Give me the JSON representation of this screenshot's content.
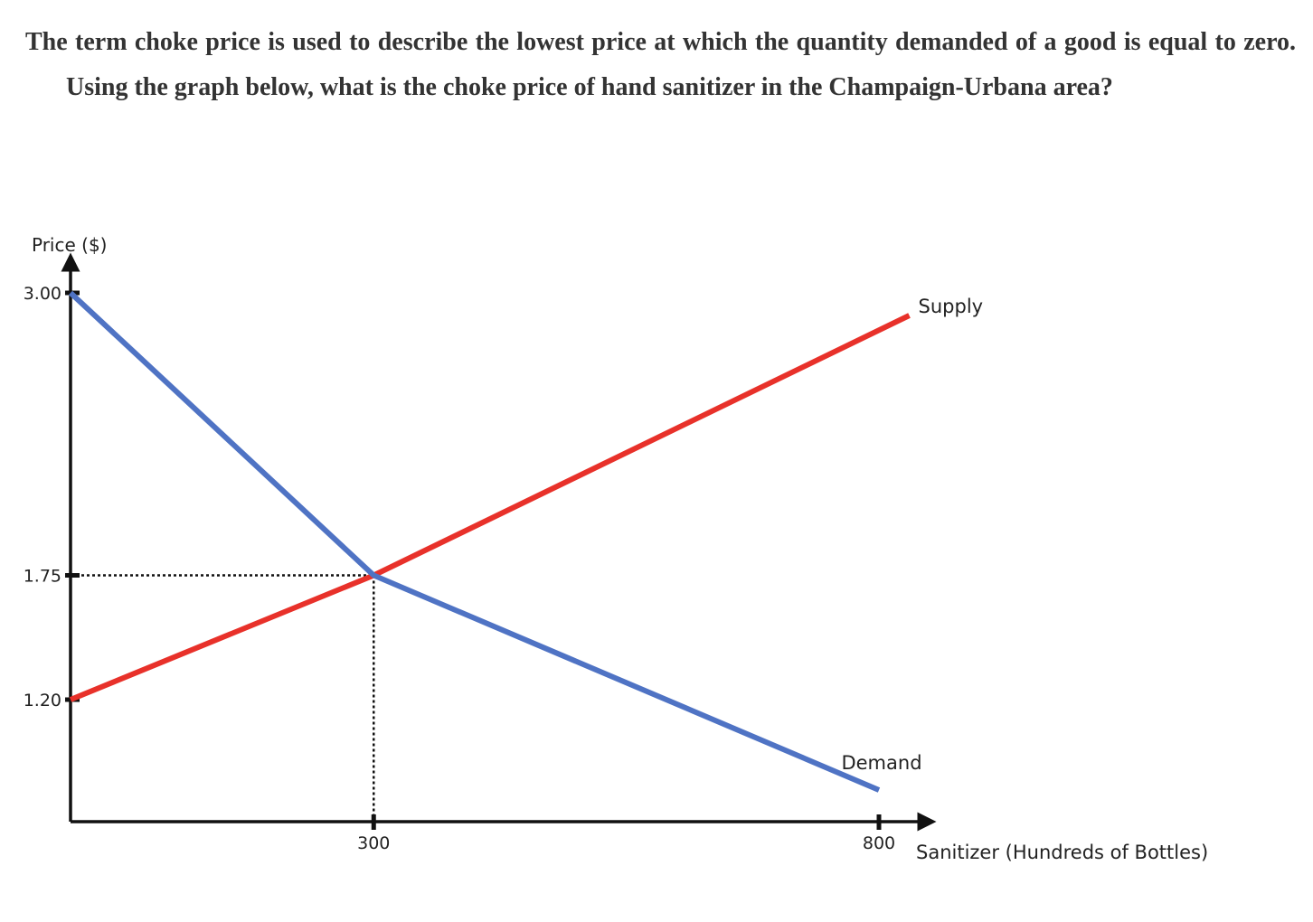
{
  "question": {
    "text": "The term choke price is used to describe the lowest price at which the quantity demanded of a good is equal to zero. Using the graph below, what is the choke price of hand sanitizer in the Champaign-Urbana area?"
  },
  "colors": {
    "supply": "#e8312a",
    "demand": "#4f73c4",
    "axis": "#111111",
    "text": "#333333"
  },
  "chart_data": {
    "type": "line",
    "xlabel": "Sanitizer (Hundreds of Bottles)",
    "ylabel": "Price ($)",
    "x_ticks": [
      300,
      800
    ],
    "x_tick_labels": [
      "300",
      "800"
    ],
    "y_ticks": [
      1.2,
      1.75,
      3.0
    ],
    "y_tick_labels": [
      "1.20",
      "1.75",
      "3.00"
    ],
    "series": [
      {
        "name": "Supply",
        "x": [
          0,
          300,
          830
        ],
        "y": [
          1.2,
          1.75,
          2.9
        ]
      },
      {
        "name": "Demand",
        "x": [
          0,
          300,
          800
        ],
        "y": [
          3.0,
          1.75,
          0.8
        ]
      }
    ],
    "equilibrium": {
      "x": 300,
      "y": 1.75
    },
    "grid": false,
    "legend": "inline labels at line ends"
  }
}
